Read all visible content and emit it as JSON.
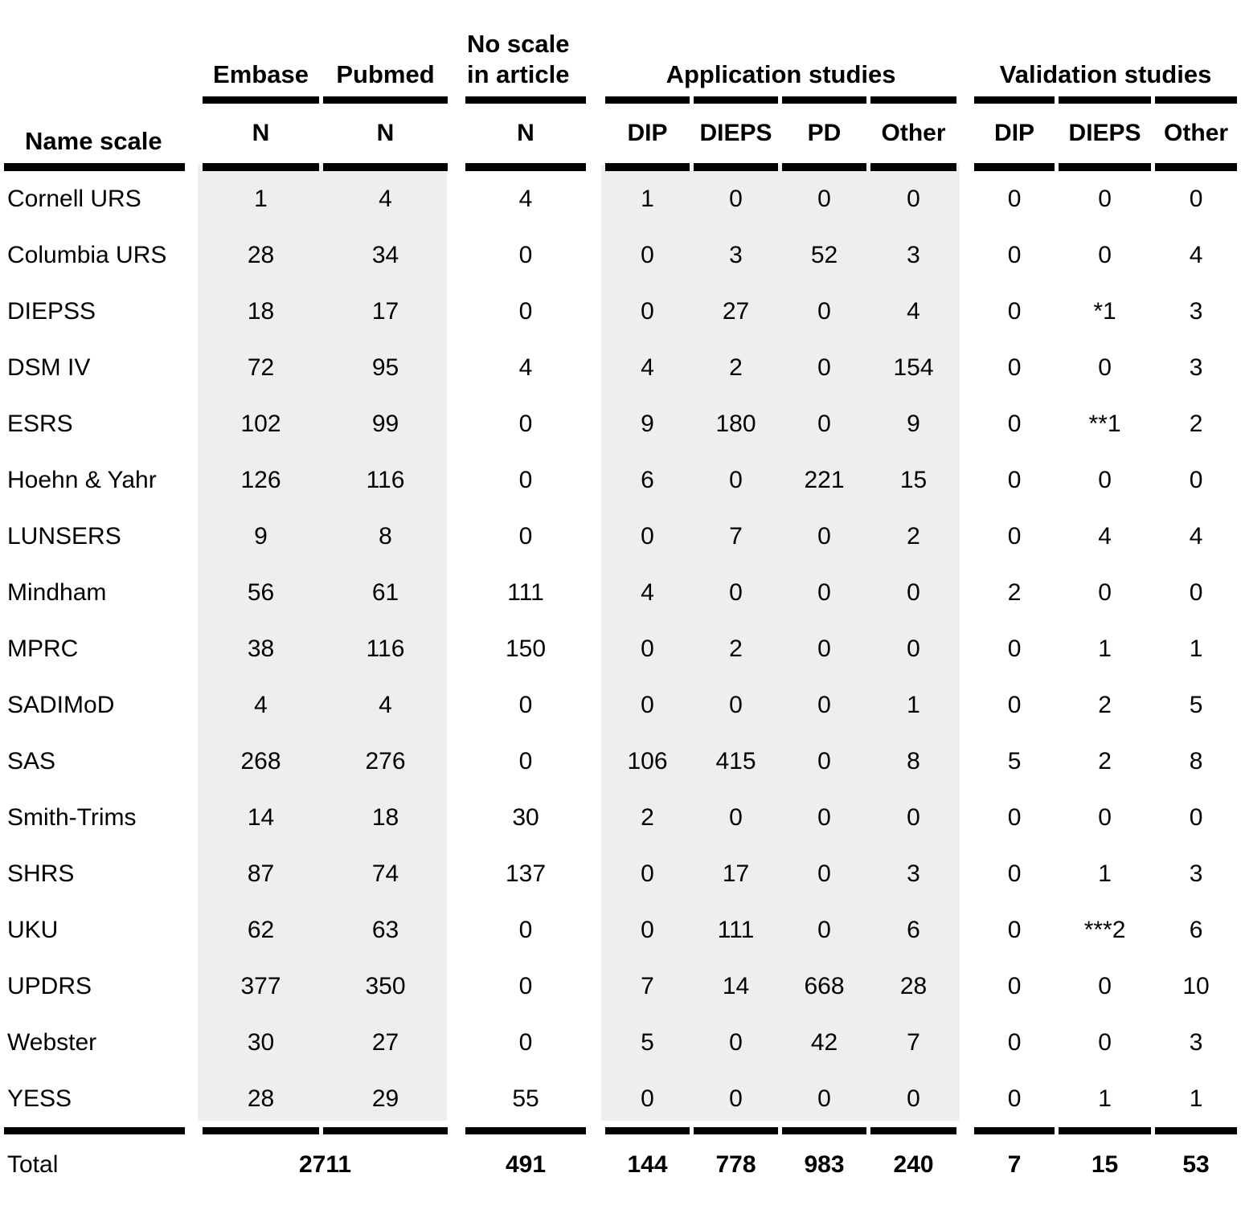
{
  "header": {
    "name_scale": "Name scale",
    "embase": "Embase",
    "pubmed": "Pubmed",
    "no_scale_line1": "No scale",
    "no_scale_line2": "in article",
    "application_studies": "Application studies",
    "validation_studies": "Validation studies",
    "n": "N",
    "app_cols": [
      "DIP",
      "DIEPS",
      "PD",
      "Other"
    ],
    "val_cols": [
      "DIP",
      "DIEPS",
      "Other"
    ]
  },
  "rows": [
    {
      "name": "Cornell URS",
      "values": [
        "1",
        "4",
        "4",
        "1",
        "0",
        "0",
        "0",
        "0",
        "0",
        "0"
      ]
    },
    {
      "name": "Columbia URS",
      "values": [
        "28",
        "34",
        "0",
        "0",
        "3",
        "52",
        "3",
        "0",
        "0",
        "4"
      ]
    },
    {
      "name": "DIEPSS",
      "values": [
        "18",
        "17",
        "0",
        "0",
        "27",
        "0",
        "4",
        "0",
        "*1",
        "3"
      ]
    },
    {
      "name": "DSM IV",
      "values": [
        "72",
        "95",
        "4",
        "4",
        "2",
        "0",
        "154",
        "0",
        "0",
        "3"
      ]
    },
    {
      "name": "ESRS",
      "values": [
        "102",
        "99",
        "0",
        "9",
        "180",
        "0",
        "9",
        "0",
        "**1",
        "2"
      ]
    },
    {
      "name": "Hoehn & Yahr",
      "values": [
        "126",
        "116",
        "0",
        "6",
        "0",
        "221",
        "15",
        "0",
        "0",
        "0"
      ]
    },
    {
      "name": "LUNSERS",
      "values": [
        "9",
        "8",
        "0",
        "0",
        "7",
        "0",
        "2",
        "0",
        "4",
        "4"
      ]
    },
    {
      "name": "Mindham",
      "values": [
        "56",
        "61",
        "111",
        "4",
        "0",
        "0",
        "0",
        "2",
        "0",
        "0"
      ]
    },
    {
      "name": "MPRC",
      "values": [
        "38",
        "116",
        "150",
        "0",
        "2",
        "0",
        "0",
        "0",
        "1",
        "1"
      ]
    },
    {
      "name": "SADIMoD",
      "values": [
        "4",
        "4",
        "0",
        "0",
        "0",
        "0",
        "1",
        "0",
        "2",
        "5"
      ]
    },
    {
      "name": "SAS",
      "values": [
        "268",
        "276",
        "0",
        "106",
        "415",
        "0",
        "8",
        "5",
        "2",
        "8"
      ]
    },
    {
      "name": "Smith-Trims",
      "values": [
        "14",
        "18",
        "30",
        "2",
        "0",
        "0",
        "0",
        "0",
        "0",
        "0"
      ]
    },
    {
      "name": "SHRS",
      "values": [
        "87",
        "74",
        "137",
        "0",
        "17",
        "0",
        "3",
        "0",
        "1",
        "3"
      ]
    },
    {
      "name": "UKU",
      "values": [
        "62",
        "63",
        "0",
        "0",
        "111",
        "0",
        "6",
        "0",
        "***2",
        "6"
      ]
    },
    {
      "name": "UPDRS",
      "values": [
        "377",
        "350",
        "0",
        "7",
        "14",
        "668",
        "28",
        "0",
        "0",
        "10"
      ]
    },
    {
      "name": "Webster",
      "values": [
        "30",
        "27",
        "0",
        "5",
        "0",
        "42",
        "7",
        "0",
        "0",
        "3"
      ]
    },
    {
      "name": "YESS",
      "values": [
        "28",
        "29",
        "55",
        "0",
        "0",
        "0",
        "0",
        "0",
        "1",
        "1"
      ]
    }
  ],
  "total": {
    "label": "Total",
    "embase_pubmed": "2711",
    "no_scale": "491",
    "app": [
      "144",
      "778",
      "983",
      "240"
    ],
    "val": [
      "7",
      "15",
      "53"
    ]
  },
  "colors": {
    "shade": "#eeeeee",
    "rule": "#000000"
  }
}
